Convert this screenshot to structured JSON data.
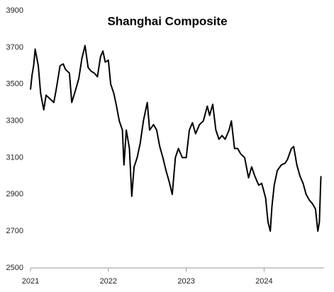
{
  "chart_data": {
    "type": "line",
    "title": "Shanghai Composite",
    "x": [
      2021.0,
      2021.02,
      2021.04,
      2021.06,
      2021.1,
      2021.13,
      2021.17,
      2021.2,
      2021.25,
      2021.3,
      2021.33,
      2021.38,
      2021.42,
      2021.45,
      2021.5,
      2021.53,
      2021.58,
      2021.62,
      2021.66,
      2021.7,
      2021.74,
      2021.78,
      2021.82,
      2021.86,
      2021.9,
      2021.93,
      2021.96,
      2022.0,
      2022.03,
      2022.07,
      2022.1,
      2022.14,
      2022.18,
      2022.2,
      2022.23,
      2022.27,
      2022.3,
      2022.33,
      2022.37,
      2022.41,
      2022.45,
      2022.5,
      2022.53,
      2022.58,
      2022.62,
      2022.66,
      2022.7,
      2022.74,
      2022.78,
      2022.82,
      2022.86,
      2022.9,
      2022.95,
      2023.0,
      2023.04,
      2023.08,
      2023.12,
      2023.17,
      2023.22,
      2023.27,
      2023.3,
      2023.34,
      2023.38,
      2023.42,
      2023.46,
      2023.5,
      2023.55,
      2023.58,
      2023.62,
      2023.66,
      2023.7,
      2023.75,
      2023.8,
      2023.84,
      2023.88,
      2023.93,
      2023.97,
      2024.02,
      2024.05,
      2024.08,
      2024.1,
      2024.13,
      2024.17,
      2024.22,
      2024.27,
      2024.3,
      2024.35,
      2024.38,
      2024.42,
      2024.46,
      2024.5,
      2024.54,
      2024.58,
      2024.62,
      2024.66,
      2024.69,
      2024.71,
      2024.725,
      2024.73
    ],
    "series": [
      {
        "color": "#000000",
        "values": [
          3470,
          3550,
          3600,
          3690,
          3600,
          3450,
          3360,
          3440,
          3420,
          3400,
          3470,
          3600,
          3610,
          3580,
          3560,
          3400,
          3470,
          3530,
          3640,
          3710,
          3590,
          3570,
          3560,
          3540,
          3650,
          3680,
          3620,
          3630,
          3500,
          3450,
          3390,
          3300,
          3250,
          3060,
          3250,
          3150,
          2890,
          3050,
          3100,
          3180,
          3300,
          3400,
          3250,
          3280,
          3250,
          3160,
          3100,
          3030,
          2970,
          2900,
          3100,
          3150,
          3100,
          3100,
          3250,
          3290,
          3230,
          3280,
          3300,
          3380,
          3330,
          3390,
          3250,
          3200,
          3220,
          3200,
          3250,
          3300,
          3150,
          3150,
          3120,
          3100,
          2990,
          3050,
          3000,
          2950,
          2960,
          2880,
          2750,
          2700,
          2830,
          2950,
          3030,
          3060,
          3070,
          3090,
          3150,
          3160,
          3060,
          3000,
          2960,
          2900,
          2870,
          2850,
          2820,
          2700,
          2750,
          2950,
          3000
        ]
      }
    ],
    "xlim": [
      2021,
      2024.77
    ],
    "xticks": [
      2021,
      2022,
      2023,
      2024
    ],
    "ylim": [
      2500,
      3900
    ],
    "yticks": [
      2500,
      2700,
      2900,
      3100,
      3300,
      3500,
      3700,
      3900
    ]
  }
}
